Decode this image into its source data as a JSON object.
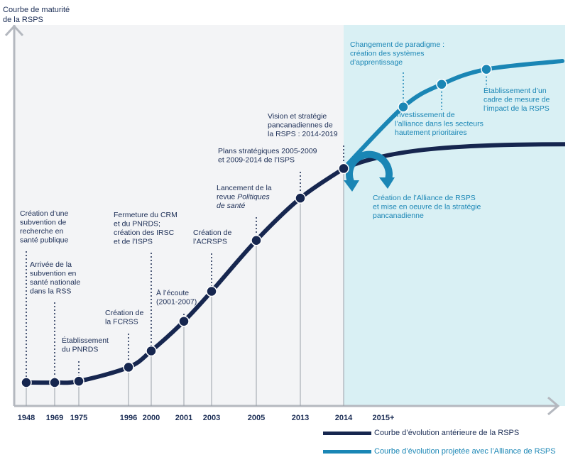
{
  "colors": {
    "past": "#16264f",
    "projected": "#1a86b5",
    "projected_bg": "#d9f0f4",
    "past_bg": "#f3f4f6",
    "axis": "#b4b8bf",
    "text": "#1b2d55"
  },
  "chart_data": {
    "type": "line",
    "title": "",
    "ylabel_lines": [
      "Courbe de maturité",
      "de la RSPS"
    ],
    "xlabel": "",
    "x_ticks": [
      "1948",
      "1969",
      "1975",
      "1996",
      "2000",
      "2001",
      "2003",
      "2005",
      "2013",
      "2014",
      "2015+"
    ],
    "y_range": [
      0,
      100
    ],
    "grid": false,
    "legend_position": "bottom-right",
    "legend": [
      {
        "label": "Courbe d’évolution antérieure de la RSPS",
        "series": "past"
      },
      {
        "label": "Courbe d’évolution projetée avec l’Alliance de RSPS",
        "series": "projected"
      }
    ],
    "series": [
      {
        "id": "past",
        "milestones": [
          {
            "year": "1948",
            "y": 0,
            "lines": [
              "Création d’une",
              "subvention de",
              "recherche en",
              "santé publique"
            ]
          },
          {
            "year": "1969",
            "y": 0,
            "lines": [
              "Arrivée de la",
              "subvention en",
              "santé nationale",
              "dans la RSS"
            ]
          },
          {
            "year": "1975",
            "y": 0.4,
            "lines": [
              "Établissement",
              "du PNRDS"
            ]
          },
          {
            "year": "1996",
            "y": 4.6,
            "lines": [
              "Création de",
              "la FCRSS"
            ]
          },
          {
            "year": "2000",
            "y": 9.5,
            "lines": [
              "Fermeture du CRM",
              "et du PNRDS;",
              "création des IRSC",
              "et de l’ISPS"
            ]
          },
          {
            "year": "2001",
            "y": 18.4,
            "lines": [
              "À l’écoute",
              "(2001-2007)"
            ]
          },
          {
            "year": "2003",
            "y": 27.4,
            "lines": [
              "Création de",
              "l’ACRSPS"
            ]
          },
          {
            "year": "2005",
            "y": 42.7,
            "lines": [
              "Lancement de la",
              "revue |Politiques|",
              "|de santé|"
            ]
          },
          {
            "year": "2013",
            "y": 55.4,
            "lines": [
              "Plans stratégiques 2005-2009",
              "et 2009-2014 de l’ISPS"
            ]
          },
          {
            "year": "2014",
            "y": 64.3,
            "lines": [
              "Vision et stratégie",
              "pancanadiennes de",
              "la RSPS : 2014-2019"
            ]
          }
        ],
        "continuation": {
          "label": "2015+",
          "y_end": 71.6
        }
      },
      {
        "id": "projected",
        "milestones": [
          {
            "x": "2014",
            "y": 64.3,
            "lines": [
              "Création de l’Alliance de RSPS",
              "et mise en oeuvre de la stratégie",
              "pancanadienne"
            ]
          },
          {
            "x": "2015+",
            "y": 82.8,
            "lines": [
              "Changement de paradigme :",
              "création des systèmes",
              "d’apprentissage"
            ]
          },
          {
            "x": "2015+",
            "y": 89.6,
            "lines": [
              "Investissement de",
              "l’alliance dans les secteurs",
              "hautement prioritaires"
            ]
          },
          {
            "x": "2015+",
            "y": 94.1,
            "lines": [
              "Établissement d’un",
              "cadre de mesure de",
              "l’impact de la RSPS"
            ]
          }
        ],
        "y_end": 96.6
      }
    ]
  }
}
